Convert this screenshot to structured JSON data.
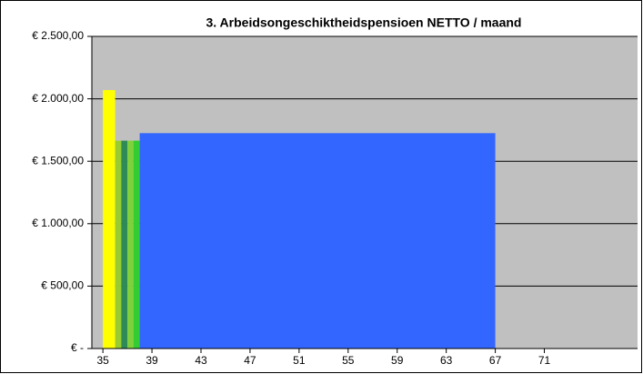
{
  "chart_data": {
    "type": "bar",
    "title": "3. Arbeidsongeschiktheidspensioen NETTO / maand",
    "series": [
      {
        "color": "#ffff00",
        "bins": [
          35,
          36
        ],
        "values": [
          2070
        ]
      },
      {
        "color": "#99cc33",
        "bins": [
          36,
          36.5
        ],
        "values": [
          1665
        ]
      },
      {
        "color": "#2e8b57",
        "bins": [
          36.5,
          37
        ],
        "values": [
          1665
        ]
      },
      {
        "color": "#7fd13b",
        "bins": [
          37,
          37.5
        ],
        "values": [
          1665
        ]
      },
      {
        "color": "#33cc33",
        "bins": [
          37.5,
          38
        ],
        "values": [
          1665
        ]
      },
      {
        "color": "#3366ff",
        "bins": [
          38,
          67
        ],
        "values": [
          1725
        ]
      }
    ],
    "xlim": [
      34.1,
      78.6
    ],
    "xticks": [
      35,
      39,
      43,
      47,
      51,
      55,
      59,
      63,
      67,
      71
    ],
    "ylim": [
      0,
      2500
    ],
    "yticks": [
      {
        "value": 0,
        "label": "€ -"
      },
      {
        "value": 500,
        "label": "€ 500,00"
      },
      {
        "value": 1000,
        "label": "€ 1.000,00"
      },
      {
        "value": 1500,
        "label": "€ 1.500,00"
      },
      {
        "value": 2000,
        "label": "€ 2.000,00"
      },
      {
        "value": 2500,
        "label": "€ 2.500,00"
      }
    ],
    "grid": true,
    "plot_color": "#c0c0c0"
  }
}
